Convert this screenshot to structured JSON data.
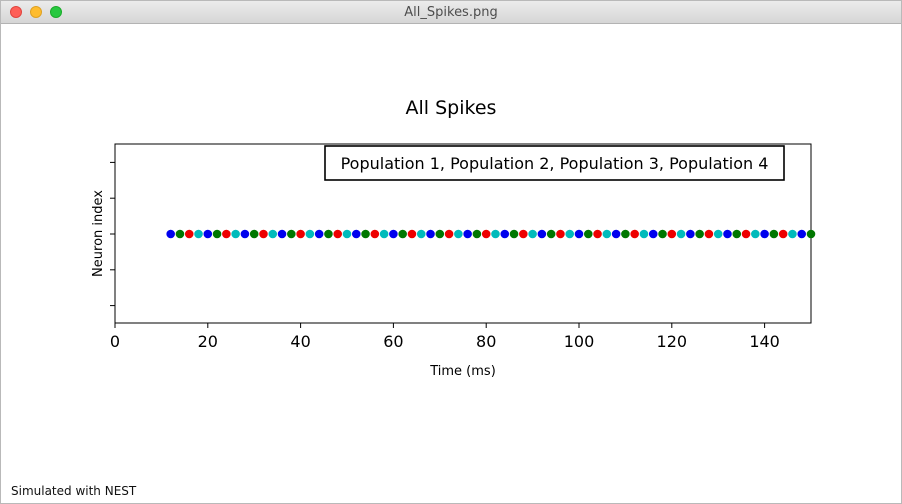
{
  "window": {
    "title": "All_Spikes.png",
    "buttons": {
      "close_icon": "close-icon",
      "minimize_icon": "minimize-icon",
      "zoom_icon": "zoom-icon"
    }
  },
  "footer": {
    "text": "Simulated with NEST"
  },
  "chart_data": {
    "type": "scatter",
    "title": "All Spikes",
    "xlabel": "Time (ms)",
    "ylabel": "Neuron index",
    "xlim": [
      0,
      150
    ],
    "xticks": [
      0,
      20,
      40,
      60,
      80,
      100,
      120,
      140
    ],
    "yticks_count": 5,
    "legend": {
      "text": "Population 1, Population 2, Population 3, Population 4",
      "placement": "top-right"
    },
    "series": [
      {
        "color": "#0000ee",
        "x": [
          12,
          20,
          28,
          36,
          44,
          52,
          60,
          68,
          76,
          84,
          92,
          100,
          108,
          116,
          124,
          132,
          140,
          148
        ],
        "y": 0
      },
      {
        "color": "#007700",
        "x": [
          14,
          22,
          30,
          38,
          46,
          54,
          62,
          70,
          78,
          86,
          94,
          102,
          110,
          118,
          126,
          134,
          142,
          150
        ],
        "y": 0
      },
      {
        "color": "#ee0000",
        "x": [
          16,
          24,
          32,
          40,
          48,
          56,
          64,
          72,
          80,
          88,
          96,
          104,
          112,
          120,
          128,
          136,
          144
        ],
        "y": 0
      },
      {
        "color": "#00bbbb",
        "x": [
          18,
          26,
          34,
          42,
          50,
          58,
          66,
          74,
          82,
          90,
          98,
          106,
          114,
          122,
          130,
          138,
          146
        ],
        "y": 0
      }
    ],
    "colors": {
      "axes": "#000000",
      "background": "#ffffff"
    }
  }
}
